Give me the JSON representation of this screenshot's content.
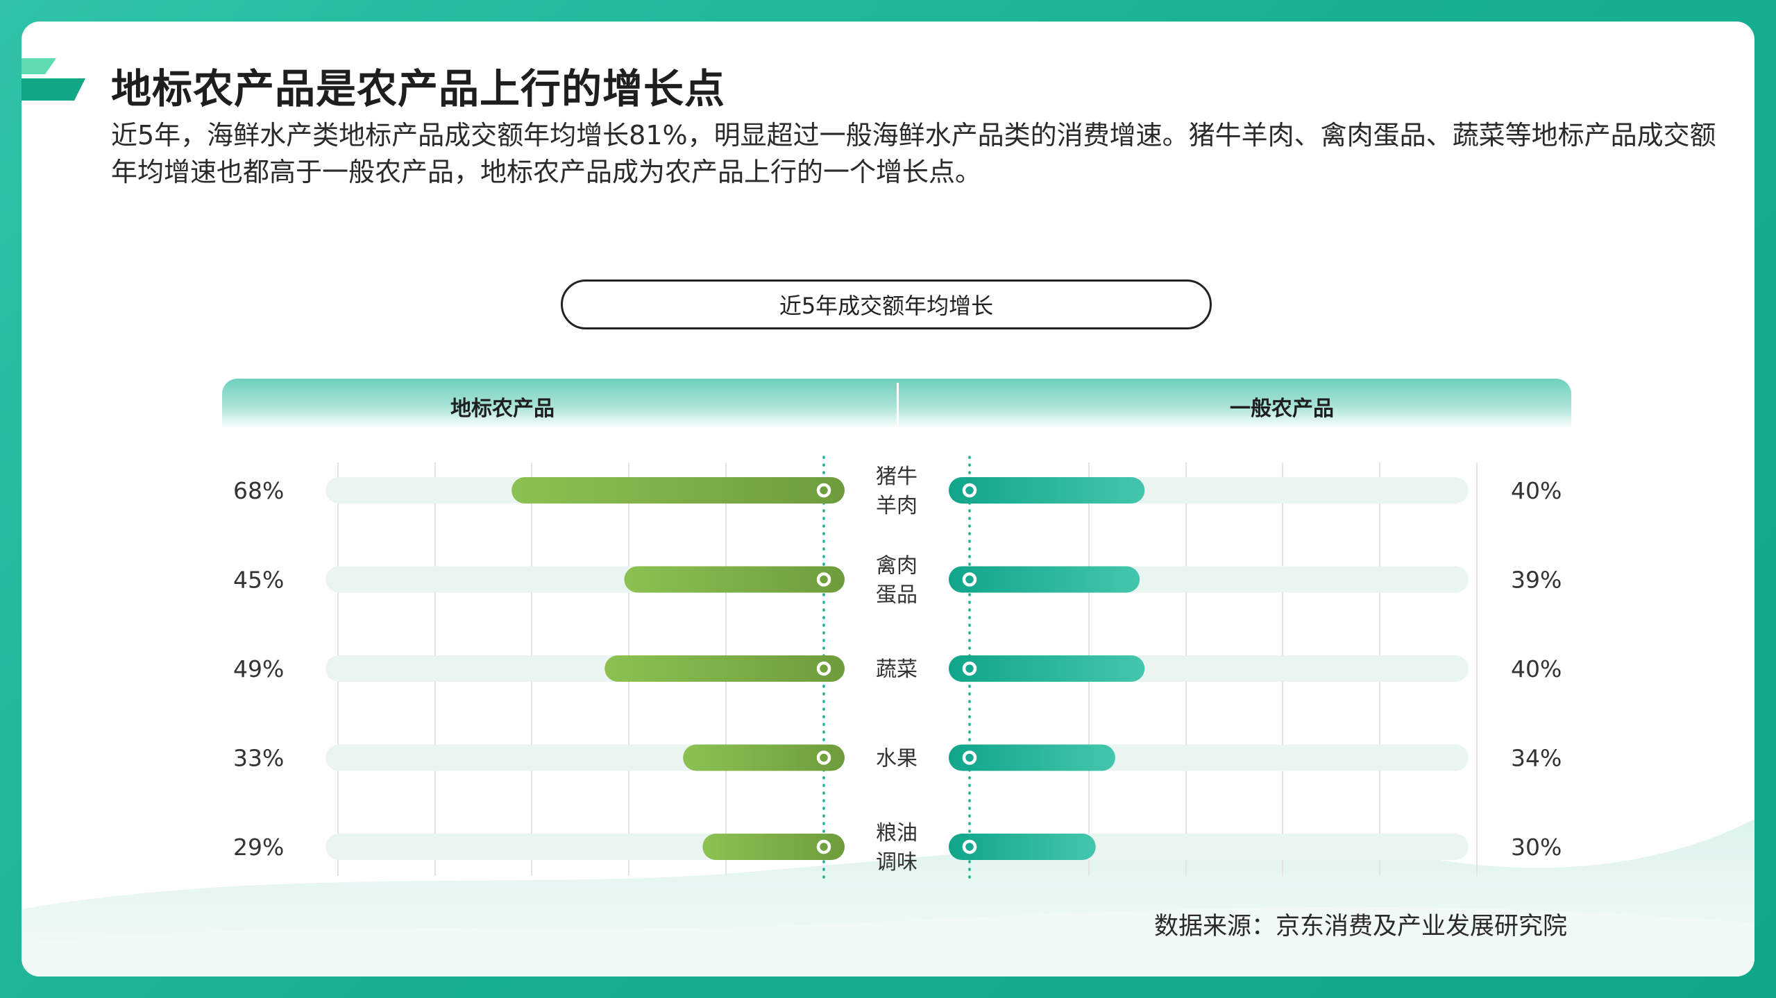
{
  "title": "地标农产品是农产品上行的增长点",
  "description": "近5年，海鲜水产类地标产品成交额年均增长81%，明显超过一般海鲜水产品类的消费增速。猪牛羊肉、禽肉蛋品、蔬菜等地标产品成交额年均增速也都高于一般农产品，地标农产品成为农产品上行的一个增长点。",
  "source": "数据来源：京东消费及产业发展研究院",
  "colors": {
    "frame": "#1aae92",
    "left_bar_start": "#8cc152",
    "left_bar_end": "#6e9c3c",
    "right_bar_start": "#10a58a",
    "right_bar_end": "#44c6ad",
    "track": "#eaf5f2",
    "dot_line": "#1aae92"
  },
  "chart_data": {
    "type": "bar",
    "title": "近5年成交额年均增长",
    "layout": "butterfly",
    "categories": [
      [
        "猪牛",
        "羊肉"
      ],
      [
        "禽肉",
        "蛋品"
      ],
      [
        "蔬菜"
      ],
      [
        "水果"
      ],
      [
        "粮油",
        "调味"
      ]
    ],
    "series": [
      {
        "name": "地标农产品",
        "values": [
          68,
          45,
          49,
          33,
          29
        ],
        "labels": [
          "68%",
          "45%",
          "49%",
          "33%",
          "29%"
        ]
      },
      {
        "name": "一般农产品",
        "values": [
          40,
          39,
          40,
          34,
          30
        ],
        "labels": [
          "40%",
          "39%",
          "40%",
          "34%",
          "30%"
        ]
      }
    ],
    "unit": "%",
    "grid": true
  }
}
